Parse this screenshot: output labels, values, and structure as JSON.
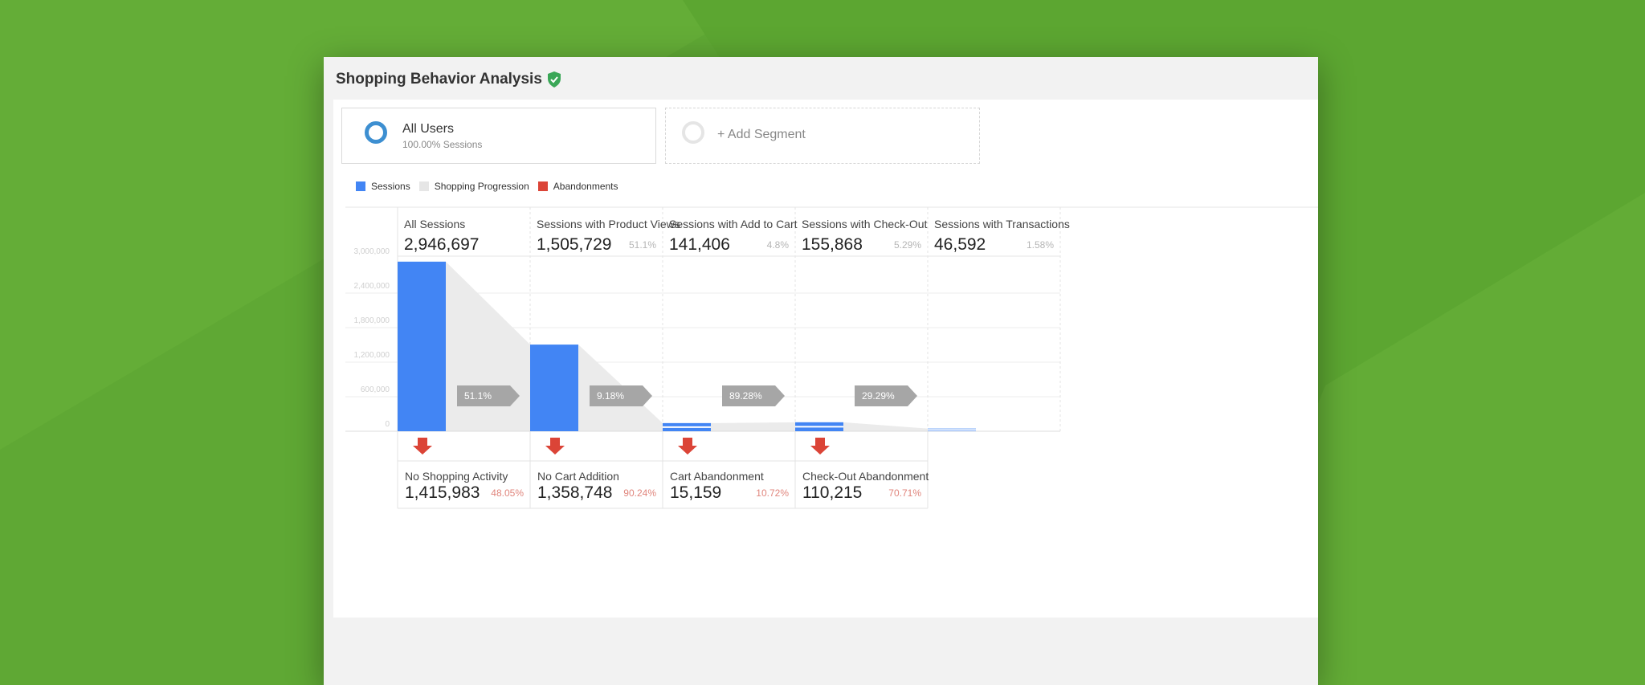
{
  "report": {
    "title": "Shopping Behavior Analysis"
  },
  "segments": {
    "active": {
      "name": "All Users",
      "sub": "100.00% Sessions"
    },
    "add": {
      "label": "+ Add Segment"
    }
  },
  "legend": [
    {
      "label": "Sessions",
      "color": "#4285f4"
    },
    {
      "label": "Shopping Progression",
      "color": "#e6e6e6"
    },
    {
      "label": "Abandonments",
      "color": "#db4437"
    }
  ],
  "colors": {
    "bar": "#4285f4",
    "abandon": "#db4437",
    "progression": "#ebebeb",
    "arrow": "#a6a6a6"
  },
  "chart_data": {
    "type": "bar",
    "ylim": [
      0,
      3000000
    ],
    "yticks": [
      "3,000,000",
      "2,400,000",
      "1,800,000",
      "1,200,000",
      "600,000",
      "0"
    ],
    "stages": [
      {
        "label": "All Sessions",
        "value_text": "2,946,697",
        "value": 2946697,
        "pct": ""
      },
      {
        "label": "Sessions with Product Views",
        "value_text": "1,505,729",
        "value": 1505729,
        "pct": "51.1%"
      },
      {
        "label": "Sessions with Add to Cart",
        "value_text": "141,406",
        "value": 141406,
        "pct": "4.8%"
      },
      {
        "label": "Sessions with Check-Out",
        "value_text": "155,868",
        "value": 155868,
        "pct": "5.29%"
      },
      {
        "label": "Sessions with Transactions",
        "value_text": "46,592",
        "value": 46592,
        "pct": "1.58%"
      }
    ],
    "progression": [
      "51.1%",
      "9.18%",
      "89.28%",
      "29.29%"
    ],
    "abandonments": [
      {
        "label": "No Shopping Activity",
        "value_text": "1,415,983",
        "pct": "48.05%"
      },
      {
        "label": "No Cart Addition",
        "value_text": "1,358,748",
        "pct": "90.24%"
      },
      {
        "label": "Cart Abandonment",
        "value_text": "15,159",
        "pct": "10.72%"
      },
      {
        "label": "Check-Out Abandonment",
        "value_text": "110,215",
        "pct": "70.71%"
      }
    ]
  }
}
